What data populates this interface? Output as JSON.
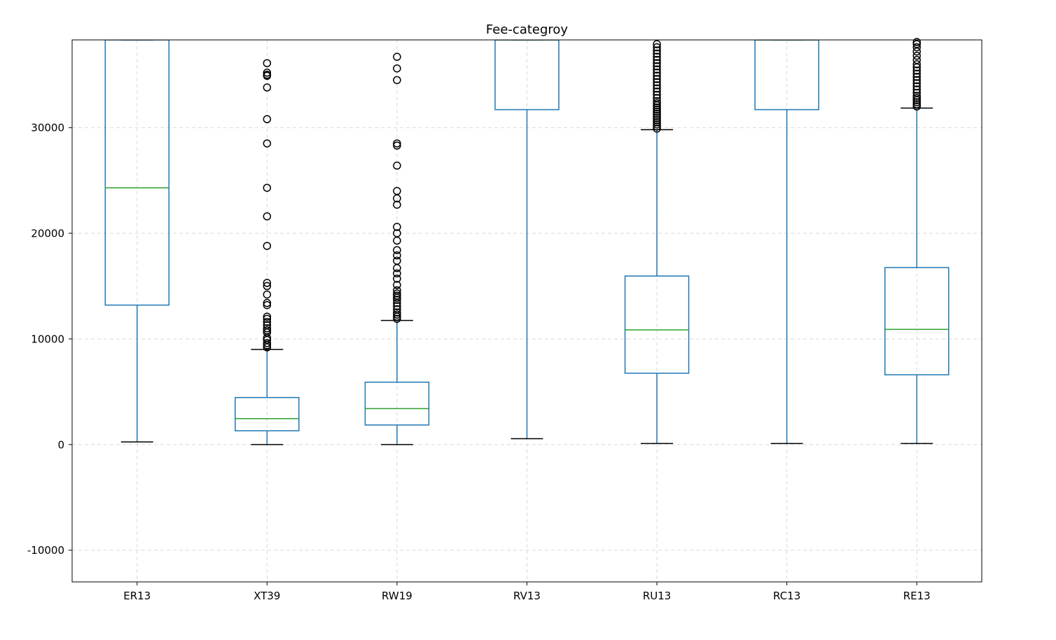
{
  "chart_data": {
    "type": "boxplot",
    "title": "Fee-categroy",
    "xlabel": "",
    "ylabel": "",
    "ylim": [
      -13000,
      38300
    ],
    "yticks": [
      -10000,
      0,
      10000,
      20000,
      30000
    ],
    "ytick_labels": [
      "-10000",
      "0",
      "10000",
      "20000",
      "30000"
    ],
    "grid": true,
    "colors": {
      "box": "#1f77b4",
      "median": "#2ca02c",
      "whisker_cap": "#000000",
      "flier": "#000000",
      "grid": "#d9d9d9"
    },
    "categories": [
      "ER13",
      "XT39",
      "RW19",
      "RV13",
      "RU13",
      "RC13",
      "RE13"
    ],
    "boxes": [
      {
        "name": "ER13",
        "whislo": 250,
        "q1": 13200,
        "med": 24300,
        "q3": 38300,
        "whishi": 38300,
        "fliers": []
      },
      {
        "name": "XT39",
        "whislo": 0,
        "q1": 1300,
        "med": 2450,
        "q3": 4450,
        "whishi": 9000,
        "fliers": [
          9200,
          9400,
          9600,
          9900,
          10100,
          10600,
          10800,
          11000,
          11300,
          11600,
          11900,
          12100,
          13200,
          13400,
          14200,
          15000,
          15300,
          18800,
          21600,
          24300,
          28500,
          30800,
          33800,
          34900,
          35000,
          35200,
          36100
        ]
      },
      {
        "name": "RW19",
        "whislo": 0,
        "q1": 1850,
        "med": 3400,
        "q3": 5900,
        "whishi": 11750,
        "fliers": [
          11900,
          12100,
          12300,
          12500,
          12800,
          13100,
          13400,
          13700,
          13900,
          14100,
          14300,
          14600,
          15100,
          15700,
          16200,
          16700,
          17400,
          17900,
          18400,
          19300,
          20000,
          20600,
          22700,
          23300,
          24000,
          26400,
          28300,
          28500,
          34500,
          35600,
          36700
        ]
      },
      {
        "name": "RV13",
        "whislo": 550,
        "q1": 31700,
        "med": 38300,
        "q3": 38300,
        "whishi": 38300,
        "fliers": []
      },
      {
        "name": "RU13",
        "whislo": 100,
        "q1": 6750,
        "med": 10850,
        "q3": 15950,
        "whishi": 29800,
        "fliers": [
          29900,
          30100,
          30300,
          30500,
          30700,
          30900,
          31100,
          31300,
          31500,
          31700,
          31900,
          32100,
          32300,
          32500,
          32800,
          33100,
          33400,
          33700,
          34000,
          34300,
          34600,
          34900,
          35200,
          35500,
          35800,
          36100,
          36400,
          36700,
          37000,
          37300,
          37600,
          37900
        ]
      },
      {
        "name": "RC13",
        "whislo": 100,
        "q1": 31700,
        "med": 38300,
        "q3": 38300,
        "whishi": 38300,
        "fliers": []
      },
      {
        "name": "RE13",
        "whislo": 100,
        "q1": 6600,
        "med": 10900,
        "q3": 16750,
        "whishi": 31850,
        "fliers": [
          32000,
          32200,
          32400,
          32600,
          32800,
          33000,
          33300,
          33600,
          33900,
          34200,
          34500,
          34800,
          35100,
          35400,
          35700,
          36000,
          36400,
          36800,
          37200,
          37600,
          37900,
          38100
        ]
      }
    ]
  }
}
